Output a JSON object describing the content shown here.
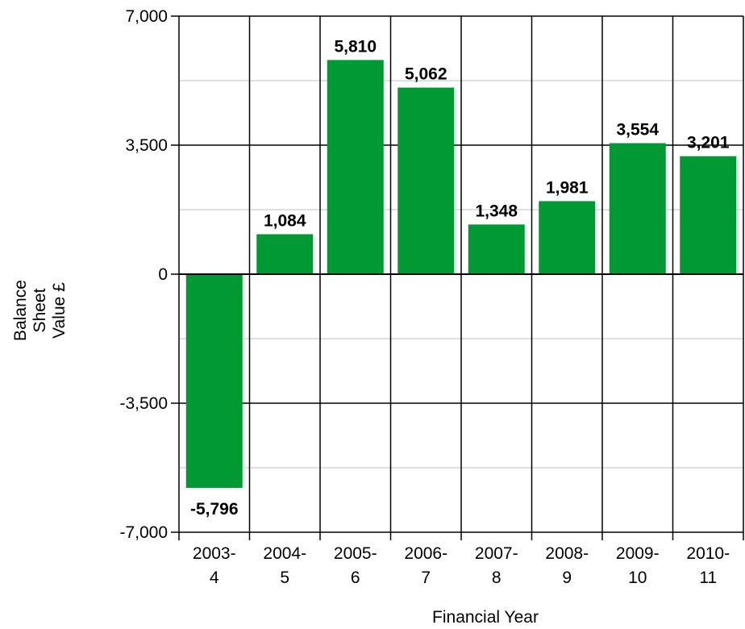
{
  "chart_data": {
    "type": "bar",
    "categories": [
      [
        "2003-",
        "4"
      ],
      [
        "2004-",
        "5"
      ],
      [
        "2005-",
        "6"
      ],
      [
        "2006-",
        "7"
      ],
      [
        "2007-",
        "8"
      ],
      [
        "2008-",
        "9"
      ],
      [
        "2009-",
        "10"
      ],
      [
        "2010-",
        "11"
      ]
    ],
    "values": [
      -5796,
      1084,
      5810,
      5062,
      1348,
      1981,
      3554,
      3201
    ],
    "value_labels": [
      "-5,796",
      "1,084",
      "5,810",
      "5,062",
      "1,348",
      "1,981",
      "3,554",
      "3,201"
    ],
    "xlabel": "Financial Year",
    "ylabel": [
      "Balance",
      "Sheet",
      "Value £"
    ],
    "ylim": [
      -7000,
      7000
    ],
    "yticks": [
      -7000,
      -3500,
      0,
      3500,
      7000
    ],
    "ytick_labels": [
      "-7,000",
      "-3,500",
      "0",
      "3,500",
      "7,000"
    ],
    "minor_gridlines": [
      -5250,
      -1750,
      1750,
      5250
    ],
    "grid": true,
    "legend": "none",
    "colors": {
      "bar": "#009933",
      "grid_major": "#000000",
      "grid_minor": "#bfbfbf",
      "text": "#000000"
    }
  }
}
